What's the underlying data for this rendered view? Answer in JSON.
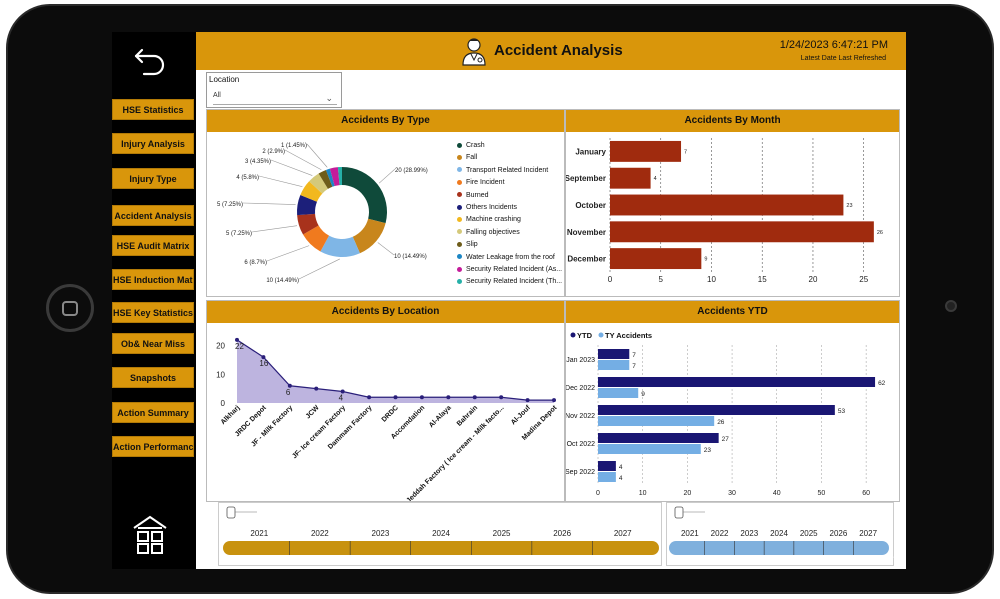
{
  "header": {
    "title": "Accident Analysis",
    "datetime": "1/24/2023 6:47:21 PM",
    "subtitle": "Latest Date Last Refreshed",
    "accent": "#d9960b"
  },
  "sidebar": {
    "items": [
      {
        "label": "HSE Statistics"
      },
      {
        "label": "Injury Analysis"
      },
      {
        "label": "Injury Type"
      },
      {
        "label": "Accident Analysis"
      },
      {
        "label": "HSE Audit Matrix"
      },
      {
        "label": "HSE Induction Matrix"
      },
      {
        "label": "HSE Key Statistics"
      },
      {
        "label": "Ob& Near Miss"
      },
      {
        "label": "Snapshots"
      },
      {
        "label": "Action Summary"
      },
      {
        "label": "Action Performance"
      }
    ]
  },
  "filter": {
    "label": "Location",
    "value": "All"
  },
  "panels": {
    "by_type": "Accidents By Type",
    "by_month": "Accidents By Month",
    "by_location": "Accidents By Location",
    "ytd": "Accidents YTD"
  },
  "chart_data": [
    {
      "type": "pie",
      "title": "Accidents By Type",
      "donut": true,
      "slices": [
        {
          "name": "Crash",
          "value": 20,
          "label": "20 (28.99%)",
          "color": "#0f4a3a"
        },
        {
          "name": "Fall",
          "value": 10,
          "label": "10 (14.49%)",
          "color": "#c8861c"
        },
        {
          "name": "Transport Related Incident",
          "value": 10,
          "label": "10 (14.49%)",
          "color": "#7fb6e6"
        },
        {
          "name": "Fire Incident",
          "value": 6,
          "label": "6 (8.7%)",
          "color": "#f07a1e"
        },
        {
          "name": "Burned",
          "value": 5,
          "label": "5 (7.25%)",
          "color": "#a8321c"
        },
        {
          "name": "Others Incidents",
          "value": 5,
          "label": "5 (7.25%)",
          "color": "#1c1f7a"
        },
        {
          "name": "Machine crashing",
          "value": 4,
          "label": "4 (5.8%)",
          "color": "#f2b81e"
        },
        {
          "name": "Falling objectives",
          "value": 3,
          "label": "3 (4.35%)",
          "color": "#d4c97a"
        },
        {
          "name": "Slip",
          "value": 2,
          "label": "2 (2.9%)",
          "color": "#6e5c1a"
        },
        {
          "name": "Water Leakage from the roof",
          "value": 1,
          "label": "1 (1.45%)",
          "color": "#1c86c4"
        },
        {
          "name": "Security Related Incident (As...",
          "value": 2,
          "label": "",
          "color": "#c41c9a"
        },
        {
          "name": "Security Related Incident (Th...",
          "value": 1,
          "label": "",
          "color": "#26b0a8"
        }
      ]
    },
    {
      "type": "bar",
      "orientation": "horizontal",
      "title": "Accidents By Month",
      "categories": [
        "January",
        "September",
        "October",
        "November",
        "December"
      ],
      "values": [
        7,
        4,
        23,
        26,
        9
      ],
      "xticks": [
        0,
        5,
        10,
        15,
        20,
        25
      ],
      "xlim": [
        0,
        27
      ],
      "color": "#a02b0e"
    },
    {
      "type": "area",
      "title": "Accidents By Location",
      "categories": [
        "Alkharj",
        "JRDC Depot",
        "JF - Milk Factory",
        "JCW",
        "JF- Ice cream Factory",
        "Dammam Factory",
        "DRDC",
        "Accomdation",
        "Al-Alaya",
        "Bahrain",
        "Jeddah Factory ( Ice cream - Milk facto...",
        "Al-Jouf",
        "Madina Depot"
      ],
      "values": [
        22,
        16,
        6,
        5,
        4,
        2,
        2,
        2,
        2,
        2,
        2,
        1,
        1
      ],
      "point_labels": [
        "22",
        "16",
        "6",
        "",
        "4",
        "",
        "",
        "",
        "",
        "",
        "",
        "",
        ""
      ],
      "yticks": [
        0,
        10,
        20
      ],
      "ylim": [
        0,
        23
      ],
      "color": "#7a6ab8"
    },
    {
      "type": "bar",
      "orientation": "horizontal",
      "title": "Accidents YTD",
      "categories": [
        "Jan 2023",
        "Dec 2022",
        "Nov 2022",
        "Oct 2022",
        "Sep 2022"
      ],
      "series": [
        {
          "name": "YTD",
          "values": [
            7,
            62,
            53,
            27,
            4
          ],
          "color": "#1a1673"
        },
        {
          "name": "TY Accidents",
          "values": [
            7,
            9,
            26,
            23,
            4
          ],
          "color": "#74aee4"
        }
      ],
      "xticks": [
        0,
        10,
        20,
        30,
        40,
        50,
        60
      ],
      "xlim": [
        0,
        64
      ]
    }
  ],
  "slicer_left": {
    "years": [
      "2021",
      "2022",
      "2023",
      "2024",
      "2025",
      "2026",
      "2027"
    ],
    "color": "#c8920f"
  },
  "slicer_right": {
    "years": [
      "2021",
      "2022",
      "2023",
      "2024",
      "2025",
      "2026",
      "2027"
    ],
    "color": "#7fb0dd"
  }
}
